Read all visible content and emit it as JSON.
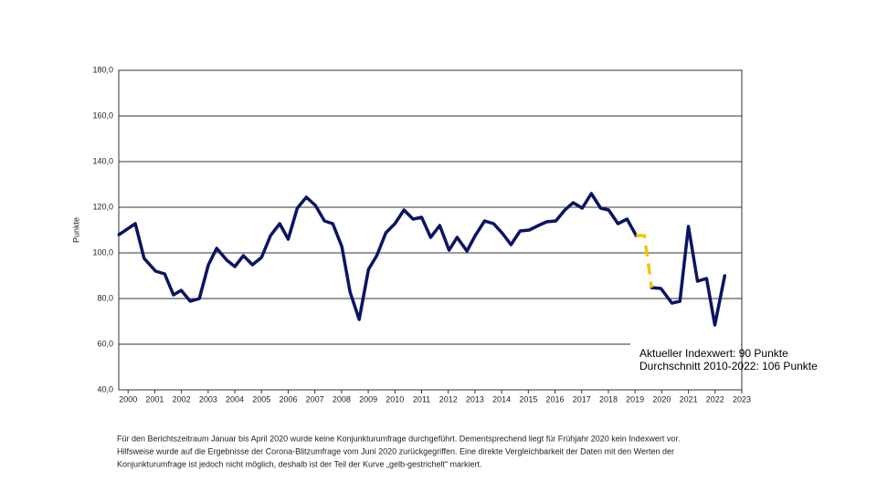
{
  "chart_data": {
    "type": "line",
    "y_label": "Punkte",
    "annotations": [
      "Aktueller Indexwert: 90 Punkte",
      "Durchschnitt 2010-2022: 106 Punkte"
    ],
    "footnote": [
      "Für den Berichtszeitraum Januar bis April 2020 wurde keine Konjunkturumfrage durchgeführt. Dementsprechend liegt für Frühjahr 2020 kein Indexwert vor.",
      "Hilfsweise wurde auf die Ergebnisse der Corona-Blitzumfrage vom Juni 2020 zurückgegriffen. Eine direkte Vergleichbarkeit der Daten mit den Werten der",
      "Konjunkturumfrage ist jedoch nicht möglich, deshalb ist der Teil der Kurve „gelb-gestrichelt“ markiert."
    ],
    "x": [
      1999.66,
      2000.27,
      2000.6,
      2001.03,
      2001.37,
      2001.7,
      2001.99,
      2002.33,
      2002.67,
      2003.01,
      2003.32,
      2003.7,
      2004.0,
      2004.32,
      2004.66,
      2005.0,
      2005.34,
      2005.68,
      2006.0,
      2006.34,
      2006.68,
      2007.02,
      2007.36,
      2007.67,
      2008.01,
      2008.32,
      2008.66,
      2009.01,
      2009.32,
      2009.66,
      2010.0,
      2010.34,
      2010.68,
      2011.0,
      2011.34,
      2011.68,
      2012.03,
      2012.33,
      2012.7,
      2013.01,
      2013.36,
      2013.7,
      2014.04,
      2014.35,
      2014.69,
      2015.03,
      2015.38,
      2015.68,
      2016.03,
      2016.37,
      2016.68,
      2017.02,
      2017.36,
      2017.71,
      2018.01,
      2018.36,
      2018.7,
      2019.04,
      2019.35,
      2019.62,
      2019.97,
      2020.38,
      2020.68,
      2021.0,
      2021.34,
      2021.68,
      2021.99,
      2022.36
    ],
    "series": [
      {
        "color": "#0a1464",
        "values": [
          108,
          112.8,
          97.6,
          92,
          90.8,
          81.6,
          83.6,
          78.8,
          80,
          94.8,
          102,
          96.8,
          94,
          98.8,
          94.8,
          98,
          107.6,
          112.8,
          106,
          119.6,
          124.4,
          120.8,
          114,
          112.8,
          102.8,
          82.8,
          70.8,
          92.8,
          98.8,
          108.8,
          112.8,
          118.8,
          114.8,
          115.6,
          106.8,
          112,
          101.2,
          106.8,
          100.8,
          107.6,
          114,
          112.8,
          108.4,
          103.6,
          109.6,
          110,
          112,
          113.6,
          114,
          118.8,
          122,
          119.6,
          126,
          119.6,
          118.8,
          112.8,
          114.8,
          107.6,
          null,
          84.8,
          84.4,
          78,
          78.8,
          111.6,
          87.6,
          88.8,
          68.4,
          90
        ]
      },
      {
        "color": "#f5c400",
        "dashed": true,
        "values": [
          null,
          null,
          null,
          null,
          null,
          null,
          null,
          null,
          null,
          null,
          null,
          null,
          null,
          null,
          null,
          null,
          null,
          null,
          null,
          null,
          null,
          null,
          null,
          null,
          null,
          null,
          null,
          null,
          null,
          null,
          null,
          null,
          null,
          null,
          null,
          null,
          null,
          null,
          null,
          null,
          null,
          null,
          null,
          null,
          null,
          null,
          null,
          null,
          null,
          null,
          null,
          null,
          null,
          null,
          null,
          null,
          null,
          107.6,
          107.6,
          84.8,
          null,
          null,
          null,
          null,
          null,
          null,
          null,
          null
        ]
      }
    ],
    "xlim": [
      1999.65,
      2023
    ],
    "xticks": [
      2000,
      2001,
      2002,
      2003,
      2004,
      2005,
      2006,
      2007,
      2008,
      2009,
      2010,
      2011,
      2012,
      2013,
      2014,
      2015,
      2016,
      2017,
      2018,
      2019,
      2020,
      2021,
      2022,
      2023
    ],
    "ylim": [
      40,
      180
    ],
    "yticks": [
      {
        "value": 40,
        "label": "40,0"
      },
      {
        "value": 60,
        "label": "60,0"
      },
      {
        "value": 80,
        "label": "80,0"
      },
      {
        "value": 100,
        "label": "100,0"
      },
      {
        "value": 120,
        "label": "120,0"
      },
      {
        "value": 140,
        "label": "140,0"
      },
      {
        "value": 160,
        "label": "160,0"
      },
      {
        "value": 180,
        "label": "180,0"
      }
    ],
    "grid": true
  }
}
